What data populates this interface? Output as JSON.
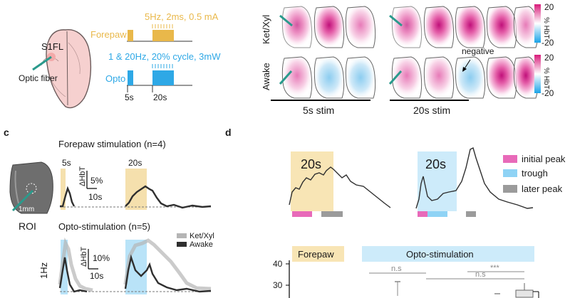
{
  "panel_a": {
    "region_label": "S1FL",
    "fiber_label": "Optic fiber",
    "forepaw_params": "5Hz, 2ms, 0.5 mA",
    "forepaw_label": "Forepaw",
    "opto_params": "1 & 20Hz, 20% cycle, 3mW",
    "opto_label": "Opto",
    "dur_5s": "5s",
    "dur_20s": "20s"
  },
  "panel_b": {
    "row1": "Ket/Xyl",
    "row2": "Awake",
    "stim_5s": "5s stim",
    "stim_20s": "20s stim",
    "negative_label": "negative",
    "cbar_max": "20",
    "cbar_min": "-20",
    "cbar_unit": "% HbT"
  },
  "panel_c": {
    "letter": "c",
    "roi_label": "ROI",
    "scale": "1mm",
    "title_forepaw": "Forepaw stimulation (n=4)",
    "title_opto": "Opto-stimulation (n=5)",
    "label_5s": "5s",
    "label_20s": "20s",
    "scale_y1": "5%",
    "scale_axis": "ΔHbT",
    "scale_x": "10s",
    "scale_y2": "10%",
    "row_1hz": "1Hz",
    "legend_kx": "Ket/Xyl",
    "legend_aw": "Awake",
    "color_kx": "#b5b5b5",
    "color_aw": "#2f2f2f"
  },
  "panel_d": {
    "letter": "d",
    "box1_label": "20s",
    "box2_label": "20s",
    "legend": [
      {
        "label": "initial peak",
        "color": "#e86ab9"
      },
      {
        "label": "trough",
        "color": "#8fd3f5"
      },
      {
        "label": "later peak",
        "color": "#9b9b9b"
      }
    ],
    "group_forepaw": "Forepaw",
    "group_opto": "Opto-stimulation",
    "tick_40": "40",
    "tick_30": "30",
    "sig1": "n.s",
    "sig2": "***",
    "sig3": "n.s"
  },
  "colors": {
    "forepaw": "#f3d898",
    "forepaw_strong": "#e9b84a",
    "opto": "#8fd3f5",
    "opto_strong": "#2ea8e6",
    "magenta": "#d81b7a",
    "fiber": "#2a9a8c"
  }
}
